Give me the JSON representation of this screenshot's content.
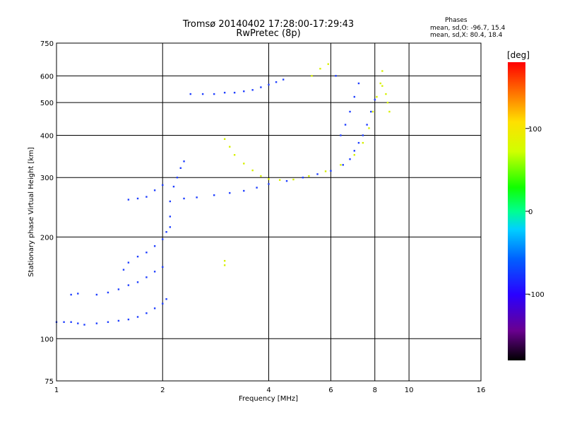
{
  "header": {
    "title_line1": "Tromsø 20140402 17:28:00-17:29:43",
    "title_line2": "RwPretec (8p)",
    "phases_label": "Phases",
    "stats_o": "mean, sd,O: -96.7, 15.4",
    "stats_x": "mean, sd,X:  80.4, 18.4"
  },
  "chart_data": {
    "type": "scatter",
    "title": "Tromsø 20140402 17:28:00-17:29:43",
    "subtitle": "RwPretec (8p)",
    "xlabel": "Frequency [MHz]",
    "ylabel": "Stationary phase Virtual Height [km]",
    "xscale": "log",
    "yscale": "log",
    "xlim": [
      1,
      16
    ],
    "ylim": [
      75,
      750
    ],
    "x_ticks": [
      1,
      2,
      4,
      6,
      8,
      10,
      16
    ],
    "y_ticks": [
      75,
      100,
      200,
      300,
      400,
      500,
      600,
      750
    ],
    "grid": true,
    "colorbar": {
      "label": "[deg]",
      "range": [
        -180,
        180
      ],
      "ticks": [
        100,
        0,
        -100
      ],
      "colormap": "rainbow"
    },
    "series": [
      {
        "name": "",
        "phase_deg": -100,
        "color": "#1f3fff",
        "points": [
          [
            1.0,
            112
          ],
          [
            1.05,
            112
          ],
          [
            1.1,
            112
          ],
          [
            1.15,
            111
          ],
          [
            1.2,
            110
          ],
          [
            1.3,
            111
          ],
          [
            1.4,
            112
          ],
          [
            1.5,
            113
          ],
          [
            1.6,
            114
          ],
          [
            1.7,
            116
          ],
          [
            1.8,
            119
          ],
          [
            1.9,
            123
          ],
          [
            2.0,
            127
          ],
          [
            2.05,
            131
          ]
        ]
      },
      {
        "name": "",
        "phase_deg": -100,
        "color": "#1f3fff",
        "points": [
          [
            1.1,
            135
          ],
          [
            1.15,
            136
          ],
          [
            1.3,
            135
          ],
          [
            1.4,
            137
          ],
          [
            1.5,
            140
          ],
          [
            1.6,
            144
          ],
          [
            1.7,
            147
          ],
          [
            1.8,
            152
          ],
          [
            1.9,
            158
          ],
          [
            2.0,
            163
          ]
        ]
      },
      {
        "name": "",
        "phase_deg": -100,
        "color": "#1f3fff",
        "points": [
          [
            1.55,
            160
          ],
          [
            1.6,
            168
          ],
          [
            1.7,
            175
          ],
          [
            1.8,
            180
          ],
          [
            1.9,
            188
          ],
          [
            2.0,
            197
          ],
          [
            2.05,
            207
          ],
          [
            2.1,
            214
          ]
        ]
      },
      {
        "name": "",
        "phase_deg": -100,
        "color": "#1f3fff",
        "points": [
          [
            2.1,
            230
          ],
          [
            2.1,
            255
          ],
          [
            2.15,
            282
          ],
          [
            2.2,
            300
          ],
          [
            2.25,
            320
          ],
          [
            2.3,
            335
          ]
        ]
      },
      {
        "name": "",
        "phase_deg": -100,
        "color": "#1f3fff",
        "points": [
          [
            2.3,
            260
          ],
          [
            2.5,
            262
          ],
          [
            2.8,
            266
          ],
          [
            3.1,
            270
          ],
          [
            3.4,
            274
          ],
          [
            3.7,
            280
          ],
          [
            4.0,
            287
          ],
          [
            4.5,
            293
          ],
          [
            5.0,
            300
          ],
          [
            5.5,
            307
          ],
          [
            6.0,
            314
          ],
          [
            6.5,
            327
          ],
          [
            6.8,
            340
          ],
          [
            7.0,
            360
          ],
          [
            7.2,
            380
          ],
          [
            7.4,
            400
          ],
          [
            7.6,
            430
          ],
          [
            7.8,
            470
          ],
          [
            8.0,
            510
          ]
        ]
      },
      {
        "name": "",
        "phase_deg": -100,
        "color": "#1f3fff",
        "points": [
          [
            2.4,
            530
          ],
          [
            2.6,
            530
          ],
          [
            2.8,
            530
          ],
          [
            3.0,
            535
          ],
          [
            3.2,
            535
          ],
          [
            3.4,
            540
          ],
          [
            3.6,
            545
          ],
          [
            3.8,
            555
          ],
          [
            4.0,
            565
          ],
          [
            4.2,
            575
          ],
          [
            4.4,
            585
          ]
        ]
      },
      {
        "name": "",
        "phase_deg": -100,
        "color": "#1f3fff",
        "points": [
          [
            1.6,
            258
          ],
          [
            1.7,
            260
          ],
          [
            1.8,
            263
          ],
          [
            1.9,
            275
          ],
          [
            2.0,
            285
          ]
        ]
      },
      {
        "name": "",
        "phase_deg": -100,
        "color": "#1f3fff",
        "points": [
          [
            6.4,
            400
          ],
          [
            6.6,
            430
          ],
          [
            6.8,
            470
          ],
          [
            7.0,
            520
          ],
          [
            7.2,
            570
          ],
          [
            6.2,
            600
          ]
        ]
      },
      {
        "name": "",
        "phase_deg": 80,
        "color": "#d6f000",
        "points": [
          [
            3.0,
            390
          ],
          [
            3.1,
            370
          ],
          [
            3.2,
            350
          ],
          [
            3.4,
            330
          ],
          [
            3.6,
            315
          ],
          [
            3.8,
            303
          ],
          [
            4.0,
            297
          ],
          [
            4.3,
            295
          ],
          [
            4.7,
            296
          ],
          [
            5.2,
            303
          ],
          [
            5.8,
            313
          ],
          [
            6.4,
            327
          ],
          [
            7.0,
            350
          ],
          [
            7.4,
            380
          ],
          [
            7.7,
            420
          ],
          [
            7.9,
            470
          ],
          [
            8.1,
            520
          ],
          [
            8.3,
            570
          ],
          [
            8.4,
            620
          ]
        ]
      },
      {
        "name": "",
        "phase_deg": 80,
        "color": "#d6f000",
        "points": [
          [
            8.4,
            560
          ],
          [
            8.6,
            530
          ],
          [
            8.7,
            500
          ],
          [
            8.8,
            470
          ]
        ]
      },
      {
        "name": "",
        "phase_deg": 80,
        "color": "#d6f000",
        "points": [
          [
            5.3,
            600
          ],
          [
            5.6,
            630
          ],
          [
            5.9,
            650
          ],
          [
            3.0,
            170
          ],
          [
            3.0,
            165
          ]
        ]
      }
    ]
  }
}
